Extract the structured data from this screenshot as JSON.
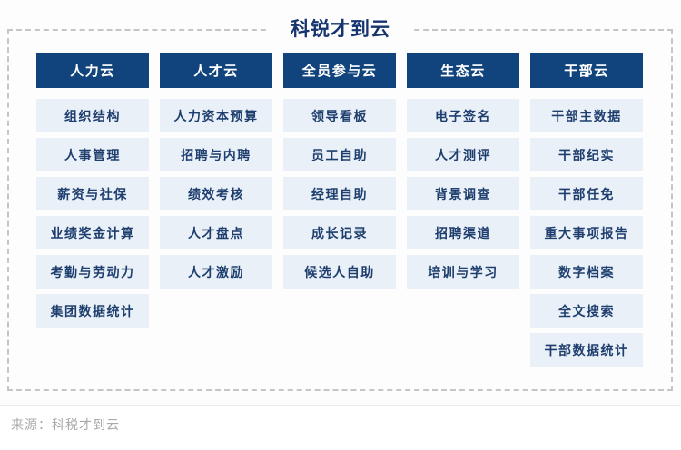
{
  "title": "科锐才到云",
  "source": "来源：科税才到云",
  "columns": [
    {
      "header": "人力云",
      "items": [
        "组织结构",
        "人事管理",
        "薪资与社保",
        "业绩奖金计算",
        "考勤与劳动力",
        "集团数据统计"
      ]
    },
    {
      "header": "人才云",
      "items": [
        "人力资本预算",
        "招聘与内聘",
        "绩效考核",
        "人才盘点",
        "人才激励"
      ]
    },
    {
      "header": "全员参与云",
      "items": [
        "领导看板",
        "员工自助",
        "经理自助",
        "成长记录",
        "候选人自助"
      ]
    },
    {
      "header": "生态云",
      "items": [
        "电子签名",
        "人才测评",
        "背景调查",
        "招聘渠道",
        "培训与学习"
      ]
    },
    {
      "header": "干部云",
      "items": [
        "干部主数据",
        "干部纪实",
        "干部任免",
        "重大事项报告",
        "数字档案",
        "全文搜索",
        "干部数据统计"
      ]
    }
  ],
  "colors": {
    "header_bg": "#11437c",
    "header_text": "#ffffff",
    "item_bg": "#e9f0f8",
    "item_text": "#1e3e6e",
    "title_text": "#16356f",
    "dashed_border": "#c5c5c5",
    "source_text": "#a9a9a9"
  }
}
